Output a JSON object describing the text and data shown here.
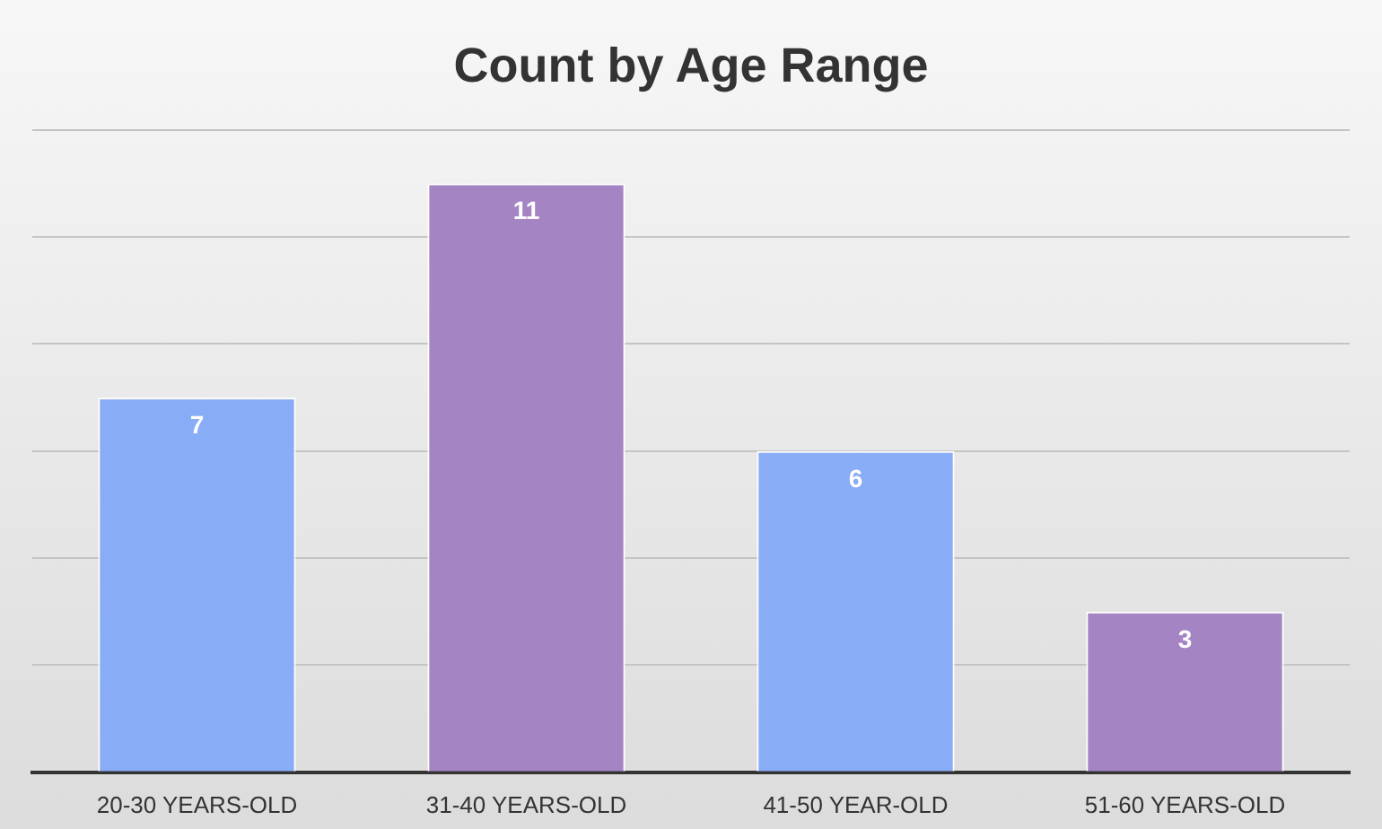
{
  "chart_data": {
    "type": "bar",
    "title": "Count by Age Range",
    "categories": [
      "20-30 YEARS-OLD",
      "31-40 YEARS-OLD",
      "41-50 YEAR-OLD",
      "51-60 YEARS-OLD"
    ],
    "values": [
      7,
      11,
      6,
      3
    ],
    "colors": [
      "#88acf6",
      "#a584c4",
      "#88acf6",
      "#a584c4"
    ],
    "ylim": [
      0,
      12
    ],
    "yticks": [
      {
        "value": 0,
        "label": null
      },
      {
        "value": 2,
        "label": null
      },
      {
        "value": 4,
        "label": null
      },
      {
        "value": 6,
        "label": null
      },
      {
        "value": 8,
        "label": null
      },
      {
        "value": 10,
        "label": null
      },
      {
        "value": 12,
        "label": null
      }
    ],
    "grid": "y",
    "tick_labels": "x",
    "data_labels": true
  }
}
